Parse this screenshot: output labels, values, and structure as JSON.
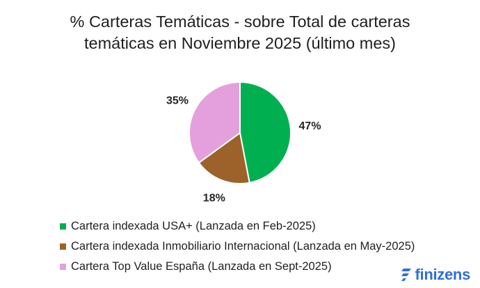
{
  "chart_data": {
    "type": "pie",
    "title": "% Carteras Temáticas - sobre Total de carteras temáticas en Noviembre 2025 (último mes)",
    "title_lines": [
      "% Carteras Temáticas - sobre Total de carteras",
      "temáticas en Noviembre 2025 (último mes)"
    ],
    "slices": [
      {
        "name": "Cartera indexada USA+ (Lanzada en Feb-2025)",
        "value": 47,
        "label": "47%",
        "color": "#00b050"
      },
      {
        "name": "Cartera indexada Inmobiliario Internacional (Lanzada en May-2025)",
        "value": 18,
        "label": "18%",
        "color": "#9c6229"
      },
      {
        "name": "Cartera Top Value España (Lanzada en Sept-2025)",
        "value": 35,
        "label": "35%",
        "color": "#e4a0dc"
      }
    ],
    "start_angle": "12 o'clock",
    "direction": "clockwise",
    "legend_position": "bottom-left"
  },
  "brand": {
    "name": "finizens",
    "color": "#2f6fd8"
  }
}
